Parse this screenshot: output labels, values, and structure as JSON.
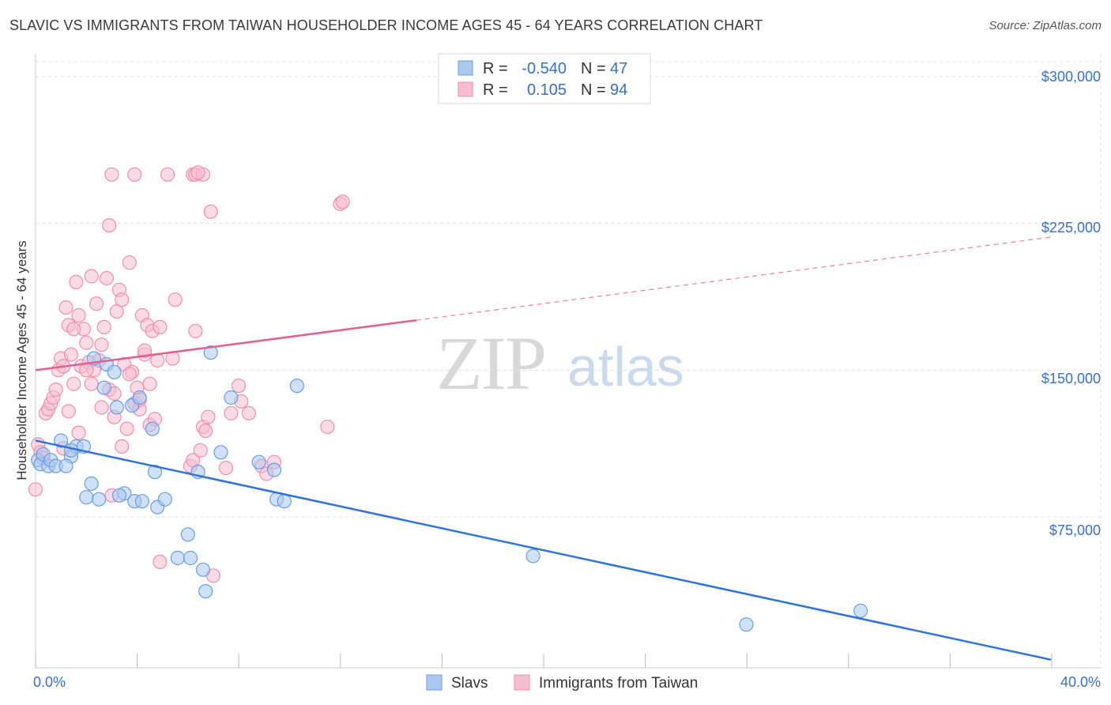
{
  "title": "SLAVIC VS IMMIGRANTS FROM TAIWAN HOUSEHOLDER INCOME AGES 45 - 64 YEARS CORRELATION CHART",
  "source": "Source: ZipAtlas.com",
  "watermark": {
    "zip": "ZIP",
    "atlas": "atlas"
  },
  "colors": {
    "slavs_fill": "#aac8f0",
    "slavs_stroke": "#6a9ee0",
    "slavs_line": "#2f73d6",
    "taiwan_fill": "#f6bcd0",
    "taiwan_stroke": "#ee8fb0",
    "taiwan_line": "#e0608e",
    "axis_text": "#3a6fc4",
    "grid": "#dddddd"
  },
  "legend": {
    "rows": [
      {
        "r_label": "R =",
        "r_value": "-0.540",
        "n_label": "N =",
        "n_value": "47"
      },
      {
        "r_label": "R =",
        "r_value": "0.105",
        "n_label": "N =",
        "n_value": "94"
      }
    ]
  },
  "bottom_legend": {
    "slavs": "Slavs",
    "taiwan": "Immigrants from Taiwan"
  },
  "chart_data": {
    "type": "scatter",
    "title": "SLAVIC VS IMMIGRANTS FROM TAIWAN HOUSEHOLDER INCOME AGES 45 - 64 YEARS CORRELATION CHART",
    "xlabel": "",
    "ylabel": "Householder Income Ages 45 - 64 years",
    "xlim": [
      0,
      40
    ],
    "ylim": [
      0,
      310000
    ],
    "x_tick_labels": [
      "0.0%",
      "40.0%"
    ],
    "y_ticks": [
      75000,
      150000,
      225000,
      300000
    ],
    "y_tick_labels": [
      "$75,000",
      "$150,000",
      "$225,000",
      "$300,000"
    ],
    "series": [
      {
        "name": "Slavs",
        "trend": {
          "x0": 0,
          "y0": 114000,
          "x1": 40,
          "y1": 2000,
          "solid_until": 40
        },
        "points": [
          [
            0.1,
            104000
          ],
          [
            0.2,
            102000
          ],
          [
            0.3,
            107000
          ],
          [
            0.5,
            101000
          ],
          [
            0.6,
            104000
          ],
          [
            0.8,
            101000
          ],
          [
            1.0,
            114000
          ],
          [
            1.4,
            106000
          ],
          [
            1.6,
            111000
          ],
          [
            1.9,
            111000
          ],
          [
            1.4,
            109000
          ],
          [
            1.2,
            101000
          ],
          [
            2.0,
            85000
          ],
          [
            2.2,
            92000
          ],
          [
            2.5,
            84000
          ],
          [
            2.7,
            141000
          ],
          [
            2.3,
            156000
          ],
          [
            2.8,
            153000
          ],
          [
            3.1,
            149000
          ],
          [
            3.2,
            131000
          ],
          [
            3.5,
            87000
          ],
          [
            3.3,
            86000
          ],
          [
            3.8,
            132000
          ],
          [
            3.9,
            83000
          ],
          [
            4.1,
            136000
          ],
          [
            4.2,
            83000
          ],
          [
            4.6,
            120000
          ],
          [
            4.7,
            98000
          ],
          [
            4.8,
            80000
          ],
          [
            5.1,
            84000
          ],
          [
            5.6,
            54000
          ],
          [
            6.0,
            66000
          ],
          [
            6.1,
            54000
          ],
          [
            6.4,
            98000
          ],
          [
            6.6,
            48000
          ],
          [
            6.7,
            37000
          ],
          [
            6.9,
            159000
          ],
          [
            7.3,
            108000
          ],
          [
            7.7,
            136000
          ],
          [
            8.8,
            103000
          ],
          [
            9.4,
            99000
          ],
          [
            9.5,
            84000
          ],
          [
            9.8,
            83000
          ],
          [
            10.3,
            142000
          ],
          [
            19.6,
            55000
          ],
          [
            28.0,
            20000
          ],
          [
            32.5,
            27000
          ]
        ]
      },
      {
        "name": "Immigrants from Taiwan",
        "trend": {
          "x0": 0,
          "y0": 150000,
          "x1": 40,
          "y1": 218000,
          "solid_until": 15
        },
        "points": [
          [
            0.0,
            89000
          ],
          [
            0.1,
            112000
          ],
          [
            0.2,
            108000
          ],
          [
            0.3,
            105000
          ],
          [
            0.4,
            128000
          ],
          [
            0.5,
            130000
          ],
          [
            0.6,
            133000
          ],
          [
            0.7,
            136000
          ],
          [
            0.8,
            140000
          ],
          [
            0.9,
            150000
          ],
          [
            1.0,
            156000
          ],
          [
            1.1,
            152000
          ],
          [
            1.2,
            182000
          ],
          [
            1.3,
            173000
          ],
          [
            1.4,
            158000
          ],
          [
            1.5,
            143000
          ],
          [
            1.6,
            195000
          ],
          [
            1.7,
            178000
          ],
          [
            1.8,
            152000
          ],
          [
            1.9,
            171000
          ],
          [
            2.0,
            164000
          ],
          [
            2.1,
            154000
          ],
          [
            2.2,
            198000
          ],
          [
            2.3,
            150000
          ],
          [
            2.4,
            184000
          ],
          [
            2.5,
            155000
          ],
          [
            2.6,
            131000
          ],
          [
            2.7,
            172000
          ],
          [
            2.8,
            197000
          ],
          [
            2.9,
            140000
          ],
          [
            3.0,
            86000
          ],
          [
            3.1,
            126000
          ],
          [
            3.2,
            180000
          ],
          [
            3.3,
            191000
          ],
          [
            3.4,
            186000
          ],
          [
            3.5,
            153000
          ],
          [
            3.6,
            120000
          ],
          [
            3.7,
            205000
          ],
          [
            3.8,
            149000
          ],
          [
            3.9,
            133000
          ],
          [
            4.0,
            141000
          ],
          [
            4.1,
            130000
          ],
          [
            4.2,
            178000
          ],
          [
            4.3,
            158000
          ],
          [
            4.4,
            173000
          ],
          [
            4.5,
            122000
          ],
          [
            4.6,
            170000
          ],
          [
            4.7,
            125000
          ],
          [
            4.8,
            155000
          ],
          [
            4.9,
            52000
          ],
          [
            2.9,
            224000
          ],
          [
            3.0,
            250000
          ],
          [
            3.9,
            250000
          ],
          [
            5.2,
            250000
          ],
          [
            6.2,
            250000
          ],
          [
            6.3,
            250000
          ],
          [
            6.6,
            250000
          ],
          [
            6.9,
            231000
          ],
          [
            12.0,
            235000
          ],
          [
            12.1,
            236000
          ],
          [
            5.5,
            186000
          ],
          [
            6.1,
            101000
          ],
          [
            6.2,
            104000
          ],
          [
            6.3,
            170000
          ],
          [
            6.4,
            251000
          ],
          [
            6.5,
            109000
          ],
          [
            6.6,
            121000
          ],
          [
            6.7,
            119000
          ],
          [
            6.8,
            126000
          ],
          [
            7.0,
            45000
          ],
          [
            7.5,
            100000
          ],
          [
            7.7,
            128000
          ],
          [
            8.0,
            142000
          ],
          [
            8.1,
            134000
          ],
          [
            8.4,
            128000
          ],
          [
            8.9,
            101000
          ],
          [
            9.1,
            97000
          ],
          [
            9.4,
            103000
          ],
          [
            11.5,
            121000
          ],
          [
            1.1,
            110000
          ],
          [
            1.3,
            129000
          ],
          [
            1.5,
            171000
          ],
          [
            1.7,
            118000
          ],
          [
            2.0,
            150000
          ],
          [
            2.2,
            143000
          ],
          [
            2.6,
            163000
          ],
          [
            3.1,
            138000
          ],
          [
            3.4,
            111000
          ],
          [
            3.7,
            148000
          ],
          [
            4.1,
            135000
          ],
          [
            4.3,
            160000
          ],
          [
            4.5,
            143000
          ],
          [
            4.9,
            172000
          ],
          [
            5.4,
            156000
          ]
        ]
      }
    ]
  },
  "axis_title_y": "Householder Income Ages 45 - 64 years",
  "x_left_label": "0.0%",
  "x_right_label": "40.0%",
  "y_labels": [
    "$75,000",
    "$150,000",
    "$225,000",
    "$300,000"
  ]
}
